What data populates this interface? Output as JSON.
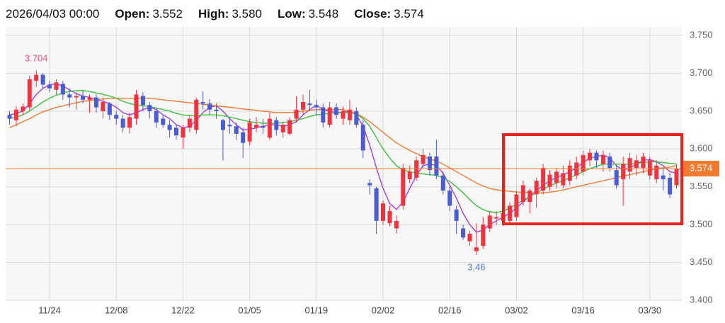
{
  "header": {
    "date": "2026/04/03 00:00",
    "items": [
      {
        "label": "Open:",
        "value": "3.552"
      },
      {
        "label": "High:",
        "value": "3.580"
      },
      {
        "label": "Low:",
        "value": "3.548"
      },
      {
        "label": "Close:",
        "value": "3.574"
      }
    ]
  },
  "chart_data": {
    "type": "candlestick",
    "categories": [
      null,
      null,
      null,
      null,
      null,
      null,
      "11/24",
      null,
      null,
      null,
      null,
      null,
      null,
      null,
      null,
      null,
      "12/08",
      null,
      null,
      null,
      null,
      null,
      null,
      null,
      null,
      null,
      "12/22",
      null,
      null,
      null,
      null,
      null,
      null,
      null,
      null,
      null,
      "01/05",
      null,
      null,
      null,
      null,
      null,
      null,
      null,
      null,
      null,
      "01/19",
      null,
      null,
      null,
      null,
      null,
      null,
      null,
      null,
      null,
      "02/02",
      null,
      null,
      null,
      null,
      null,
      null,
      null,
      null,
      null,
      "02/16",
      null,
      null,
      null,
      null,
      null,
      null,
      null,
      null,
      null,
      "03/02",
      null,
      null,
      null,
      null,
      null,
      null,
      null,
      null,
      null,
      "03/16",
      null,
      null,
      null,
      null,
      null,
      null,
      null,
      null,
      null,
      "03/30",
      null,
      null,
      null,
      null
    ],
    "open": [
      3.645,
      3.638,
      3.65,
      3.655,
      3.69,
      3.698,
      3.685,
      3.678,
      3.686,
      3.672,
      3.668,
      3.67,
      3.665,
      3.668,
      3.65,
      3.66,
      3.645,
      3.64,
      3.628,
      3.64,
      3.67,
      3.658,
      3.65,
      3.64,
      3.632,
      3.628,
      3.615,
      3.628,
      3.625,
      3.662,
      3.66,
      3.652,
      3.638,
      3.632,
      3.63,
      3.622,
      3.61,
      3.628,
      3.63,
      3.615,
      3.638,
      3.622,
      3.62,
      3.64,
      3.652,
      3.66,
      3.658,
      3.655,
      3.632,
      3.655,
      3.64,
      3.638,
      3.65,
      3.632,
      3.555,
      3.548,
      3.505,
      3.502,
      3.495,
      3.525,
      3.56,
      3.562,
      3.58,
      3.59,
      3.59,
      3.565,
      3.545,
      3.52,
      3.495,
      3.478,
      3.465,
      3.472,
      3.495,
      3.508,
      3.505,
      3.505,
      3.51,
      3.53,
      3.53,
      3.54,
      3.545,
      3.55,
      3.555,
      3.552,
      3.558,
      3.565,
      3.57,
      3.585,
      3.595,
      3.58,
      3.59,
      3.572,
      3.56,
      3.57,
      3.575,
      3.575,
      3.565,
      3.56,
      3.565,
      3.562,
      3.552
    ],
    "high": [
      3.65,
      3.656,
      3.66,
      3.697,
      3.704,
      3.7,
      3.69,
      3.692,
      3.69,
      3.68,
      3.675,
      3.678,
      3.672,
      3.672,
      3.668,
      3.662,
      3.65,
      3.645,
      3.648,
      3.678,
      3.675,
      3.662,
      3.655,
      3.645,
      3.638,
      3.632,
      3.632,
      3.645,
      3.668,
      3.676,
      3.666,
      3.66,
      3.64,
      3.642,
      3.635,
      3.628,
      3.64,
      3.642,
      3.64,
      3.648,
      3.642,
      3.636,
      3.642,
      3.67,
      3.672,
      3.678,
      3.665,
      3.66,
      3.662,
      3.66,
      3.656,
      3.665,
      3.655,
      3.638,
      3.56,
      3.55,
      3.532,
      3.525,
      3.512,
      3.58,
      3.578,
      3.59,
      3.6,
      3.595,
      3.612,
      3.57,
      3.55,
      3.525,
      3.5,
      3.492,
      3.502,
      3.51,
      3.518,
      3.518,
      3.52,
      3.53,
      3.545,
      3.558,
      3.548,
      3.562,
      3.58,
      3.572,
      3.575,
      3.578,
      3.585,
      3.59,
      3.598,
      3.6,
      3.598,
      3.598,
      3.595,
      3.578,
      3.59,
      3.595,
      3.592,
      3.595,
      3.59,
      3.585,
      3.575,
      3.568,
      3.58
    ],
    "low": [
      3.632,
      3.63,
      3.645,
      3.65,
      3.682,
      3.68,
      3.675,
      3.672,
      3.665,
      3.655,
      3.652,
      3.66,
      3.648,
      3.648,
      3.64,
      3.638,
      3.632,
      3.622,
      3.62,
      3.632,
      3.65,
      3.64,
      3.628,
      3.628,
      3.615,
      3.612,
      3.6,
      3.622,
      3.62,
      3.652,
      3.645,
      3.64,
      3.585,
      3.62,
      3.612,
      3.588,
      3.605,
      3.622,
      3.62,
      3.612,
      3.618,
      3.615,
      3.618,
      3.635,
      3.645,
      3.65,
      3.645,
      3.628,
      3.628,
      3.64,
      3.632,
      3.632,
      3.628,
      3.588,
      3.54,
      3.488,
      3.5,
      3.498,
      3.488,
      3.52,
      3.555,
      3.558,
      3.575,
      3.565,
      3.56,
      3.54,
      3.518,
      3.488,
      3.48,
      3.472,
      3.46,
      3.468,
      3.49,
      3.5,
      3.498,
      3.5,
      3.505,
      3.525,
      3.515,
      3.522,
      3.54,
      3.545,
      3.548,
      3.548,
      3.552,
      3.56,
      3.565,
      3.578,
      3.575,
      3.57,
      3.57,
      3.548,
      3.525,
      3.56,
      3.565,
      3.568,
      3.56,
      3.555,
      3.545,
      3.535,
      3.548
    ],
    "close": [
      3.64,
      3.652,
      3.656,
      3.692,
      3.698,
      3.685,
      3.68,
      3.688,
      3.672,
      3.668,
      3.67,
      3.665,
      3.668,
      3.655,
      3.662,
      3.645,
      3.64,
      3.628,
      3.642,
      3.672,
      3.658,
      3.65,
      3.635,
      3.632,
      3.625,
      3.618,
      3.628,
      3.64,
      3.665,
      3.66,
      3.652,
      3.65,
      3.625,
      3.63,
      3.62,
      3.608,
      3.635,
      3.632,
      3.628,
      3.64,
      3.625,
      3.632,
      3.638,
      3.652,
      3.662,
      3.658,
      3.655,
      3.635,
      3.655,
      3.645,
      3.65,
      3.652,
      3.632,
      3.598,
      3.552,
      3.505,
      3.528,
      3.518,
      3.505,
      3.575,
      3.57,
      3.585,
      3.592,
      3.572,
      3.565,
      3.545,
      3.525,
      3.505,
      3.483,
      3.488,
      3.47,
      3.5,
      3.512,
      3.51,
      3.515,
      3.525,
      3.54,
      3.552,
      3.545,
      3.558,
      3.575,
      3.566,
      3.57,
      3.568,
      3.578,
      3.582,
      3.592,
      3.595,
      3.585,
      3.592,
      3.575,
      3.552,
      3.58,
      3.588,
      3.585,
      3.59,
      3.585,
      3.578,
      3.56,
      3.54,
      3.574
    ],
    "up_color": "#f2333f",
    "down_color": "#4a5bd4",
    "series": [
      {
        "color": "#a23fe6",
        "values": [
          3.645,
          3.647,
          3.65,
          3.66,
          3.672,
          3.68,
          3.685,
          3.686,
          3.683,
          3.678,
          3.673,
          3.67,
          3.668,
          3.665,
          3.663,
          3.66,
          3.655,
          3.648,
          3.645,
          3.648,
          3.652,
          3.655,
          3.652,
          3.645,
          3.64,
          3.632,
          3.628,
          3.63,
          3.638,
          3.648,
          3.655,
          3.657,
          3.65,
          3.64,
          3.632,
          3.625,
          3.626,
          3.628,
          3.63,
          3.632,
          3.632,
          3.63,
          3.632,
          3.636,
          3.645,
          3.652,
          3.658,
          3.652,
          3.65,
          3.648,
          3.648,
          3.65,
          3.645,
          3.63,
          3.605,
          3.575,
          3.548,
          3.528,
          3.52,
          3.53,
          3.548,
          3.565,
          3.578,
          3.58,
          3.578,
          3.568,
          3.552,
          3.535,
          3.515,
          3.5,
          3.49,
          3.493,
          3.5,
          3.505,
          3.51,
          3.515,
          3.522,
          3.53,
          3.538,
          3.545,
          3.552,
          3.558,
          3.562,
          3.566,
          3.57,
          3.575,
          3.582,
          3.588,
          3.59,
          3.592,
          3.588,
          3.578,
          3.572,
          3.575,
          3.58,
          3.585,
          3.586,
          3.583,
          3.578,
          3.57,
          3.568
        ]
      },
      {
        "color": "#3cbf3c",
        "values": [
          3.64,
          3.642,
          3.645,
          3.65,
          3.656,
          3.662,
          3.667,
          3.671,
          3.674,
          3.676,
          3.677,
          3.677,
          3.676,
          3.674,
          3.672,
          3.67,
          3.667,
          3.663,
          3.66,
          3.658,
          3.657,
          3.656,
          3.654,
          3.652,
          3.65,
          3.647,
          3.645,
          3.644,
          3.644,
          3.645,
          3.645,
          3.645,
          3.644,
          3.642,
          3.64,
          3.638,
          3.636,
          3.635,
          3.634,
          3.634,
          3.634,
          3.635,
          3.636,
          3.638,
          3.64,
          3.643,
          3.645,
          3.646,
          3.647,
          3.648,
          3.648,
          3.648,
          3.646,
          3.64,
          3.63,
          3.615,
          3.6,
          3.588,
          3.578,
          3.572,
          3.57,
          3.568,
          3.567,
          3.566,
          3.565,
          3.562,
          3.557,
          3.55,
          3.542,
          3.533,
          3.525,
          3.52,
          3.517,
          3.516,
          3.518,
          3.522,
          3.527,
          3.532,
          3.537,
          3.542,
          3.547,
          3.551,
          3.555,
          3.558,
          3.562,
          3.566,
          3.57,
          3.574,
          3.577,
          3.58,
          3.58,
          3.58,
          3.58,
          3.58,
          3.581,
          3.582,
          3.583,
          3.583,
          3.582,
          3.581,
          3.58
        ]
      },
      {
        "color": "#f27a30",
        "values": [
          3.628,
          3.632,
          3.636,
          3.64,
          3.645,
          3.649,
          3.652,
          3.655,
          3.657,
          3.659,
          3.661,
          3.663,
          3.664,
          3.665,
          3.666,
          3.667,
          3.667,
          3.667,
          3.667,
          3.667,
          3.667,
          3.667,
          3.666,
          3.665,
          3.664,
          3.663,
          3.662,
          3.661,
          3.66,
          3.659,
          3.658,
          3.657,
          3.656,
          3.655,
          3.654,
          3.653,
          3.652,
          3.651,
          3.65,
          3.649,
          3.648,
          3.648,
          3.648,
          3.649,
          3.65,
          3.651,
          3.652,
          3.652,
          3.652,
          3.652,
          3.652,
          3.65,
          3.647,
          3.642,
          3.636,
          3.629,
          3.622,
          3.615,
          3.608,
          3.603,
          3.598,
          3.594,
          3.59,
          3.587,
          3.584,
          3.58,
          3.575,
          3.57,
          3.565,
          3.56,
          3.555,
          3.551,
          3.548,
          3.546,
          3.545,
          3.544,
          3.543,
          3.543,
          3.542,
          3.542,
          3.542,
          3.543,
          3.544,
          3.546,
          3.548,
          3.55,
          3.552,
          3.554,
          3.556,
          3.558,
          3.56,
          3.562,
          3.564,
          3.566,
          3.568,
          3.57,
          3.572,
          3.574,
          3.575,
          3.576,
          3.578
        ]
      }
    ],
    "high_marker": 3.704,
    "high_marker_color": "#e8507e",
    "low_marker": 3.46,
    "low_marker_color": "#4f7fcf",
    "current_price": 3.574,
    "current_price_color": "#f27a30",
    "ylim": [
      3.4,
      3.75
    ],
    "yticks": [
      {
        "value": 3.75,
        "label": "3.750"
      },
      {
        "value": 3.7,
        "label": "3.700"
      },
      {
        "value": 3.65,
        "label": "3.650"
      },
      {
        "value": 3.6,
        "label": "3.600"
      },
      {
        "value": 3.55,
        "label": "3.550"
      },
      {
        "value": 3.5,
        "label": "3.500"
      },
      {
        "value": 3.45,
        "label": "3.450"
      },
      {
        "value": 3.4,
        "label": "3.400"
      }
    ],
    "grid": true
  }
}
